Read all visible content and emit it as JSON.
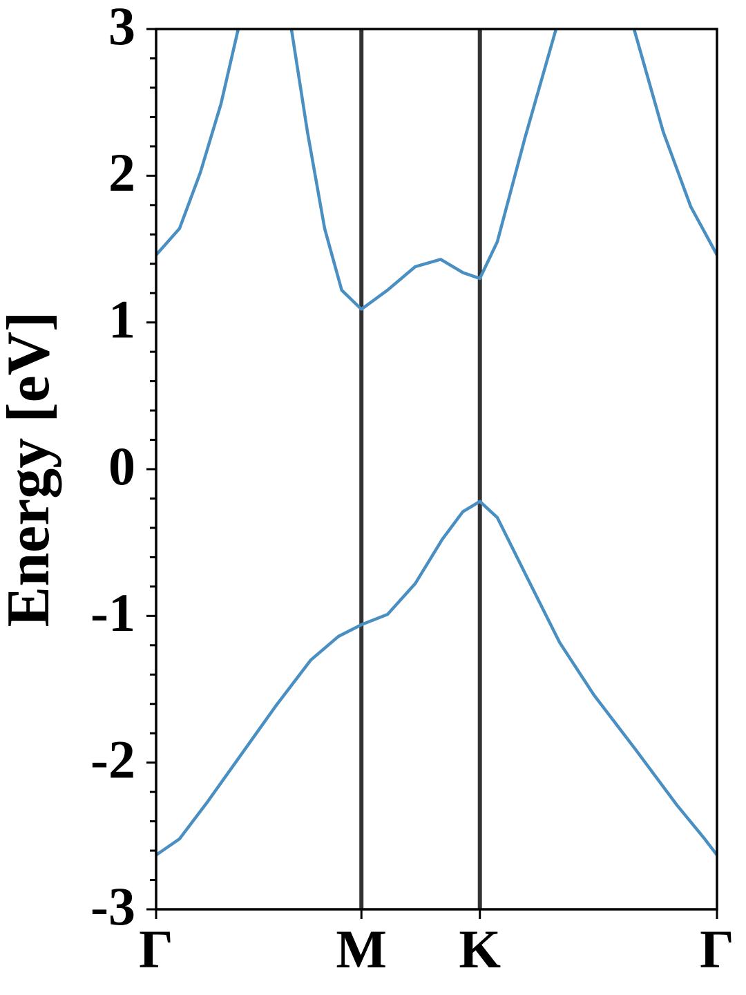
{
  "chart_data": {
    "type": "line",
    "y_label": "Energy [eV]",
    "ylim": [
      -3,
      3
    ],
    "yticks": [
      -3,
      -2,
      -1,
      0,
      1,
      2,
      3
    ],
    "yminorticks": [
      -2.8,
      -2.6,
      -2.4,
      -2.2,
      -1.8,
      -1.6,
      -1.4,
      -1.2,
      -0.8,
      -0.6,
      -0.4,
      -0.2,
      0.2,
      0.4,
      0.6,
      0.8,
      1.2,
      1.4,
      1.6,
      1.8,
      2.2,
      2.4,
      2.6,
      2.8
    ],
    "xlim": [
      0,
      2.732
    ],
    "xticks": [
      {
        "value": 0,
        "label": "Γ"
      },
      {
        "value": 1,
        "label": "M"
      },
      {
        "value": 1.577,
        "label": "K"
      },
      {
        "value": 2.732,
        "label": "Γ"
      }
    ],
    "vlines": [
      1,
      1.577
    ],
    "vline_color": "#333333",
    "series": [
      {
        "color": "#4a8fc1",
        "x": [
          0,
          0.114,
          0.215,
          0.316,
          0.4,
          0.53,
          0.659,
          0.737,
          0.821,
          0.904,
          1,
          1.127,
          1.262,
          1.386,
          1.494,
          1.577,
          1.662,
          1.797,
          1.948,
          2.138,
          2.328,
          2.47,
          2.604,
          2.732
        ],
        "values": [
          1.46,
          1.64,
          2.02,
          2.49,
          3.0,
          null,
          3.0,
          2.3,
          1.64,
          1.22,
          1.09,
          1.22,
          1.38,
          1.43,
          1.34,
          1.3,
          1.55,
          2.26,
          3.0,
          null,
          3.0,
          2.3,
          1.79,
          1.46
        ]
      },
      {
        "color": "#4a8fc1",
        "x": [
          0,
          0.114,
          0.249,
          0.417,
          0.585,
          0.754,
          0.888,
          1,
          1.127,
          1.262,
          1.393,
          1.494,
          1.577,
          1.662,
          1.797,
          1.965,
          2.133,
          2.335,
          2.537,
          2.672,
          2.732
        ],
        "values": [
          -2.63,
          -2.52,
          -2.27,
          -1.94,
          -1.61,
          -1.3,
          -1.14,
          -1.06,
          -0.99,
          -0.78,
          -0.48,
          -0.29,
          -0.22,
          -0.33,
          -0.71,
          -1.18,
          -1.54,
          -1.91,
          -2.29,
          -2.52,
          -2.63
        ]
      }
    ]
  }
}
